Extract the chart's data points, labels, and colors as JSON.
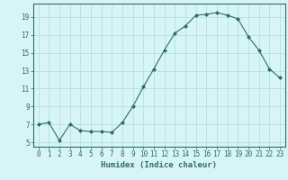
{
  "x": [
    0,
    1,
    2,
    3,
    4,
    5,
    6,
    7,
    8,
    9,
    10,
    11,
    12,
    13,
    14,
    15,
    16,
    17,
    18,
    19,
    20,
    21,
    22,
    23
  ],
  "y": [
    7,
    7.2,
    5.2,
    7,
    6.3,
    6.2,
    6.2,
    6.1,
    7.2,
    9,
    11.2,
    13.2,
    15.3,
    17.2,
    18,
    19.2,
    19.3,
    19.5,
    19.2,
    18.8,
    16.8,
    15.3,
    13.2,
    12.2
  ],
  "line_color": "#2d6b6b",
  "marker": "D",
  "marker_size": 2,
  "bg_color": "#d8f5f5",
  "grid_color": "#aadddd",
  "xlabel": "Humidex (Indice chaleur)",
  "xlim": [
    -0.5,
    23.5
  ],
  "ylim": [
    4.5,
    20.5
  ],
  "yticks": [
    5,
    7,
    9,
    11,
    13,
    15,
    17,
    19
  ],
  "xticks": [
    0,
    1,
    2,
    3,
    4,
    5,
    6,
    7,
    8,
    9,
    10,
    11,
    12,
    13,
    14,
    15,
    16,
    17,
    18,
    19,
    20,
    21,
    22,
    23
  ],
  "xtick_labels": [
    "0",
    "1",
    "2",
    "3",
    "4",
    "5",
    "6",
    "7",
    "8",
    "9",
    "10",
    "11",
    "12",
    "13",
    "14",
    "15",
    "16",
    "17",
    "18",
    "19",
    "20",
    "21",
    "22",
    "23"
  ],
  "font_color": "#2d6b6b",
  "tick_fontsize": 5.5,
  "label_fontsize": 6.5
}
